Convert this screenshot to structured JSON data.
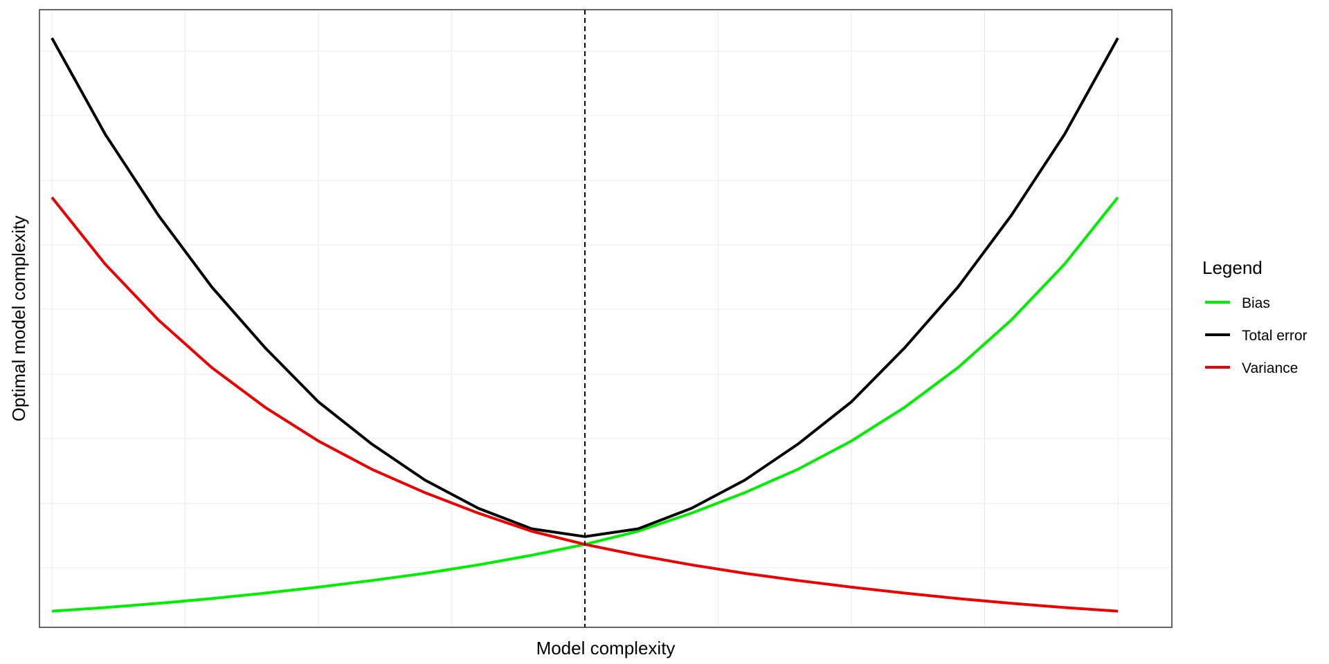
{
  "chart_data": {
    "type": "line",
    "title": "",
    "xlabel": "Model complexity",
    "ylabel": "Optimal model complexity",
    "xlim": [
      0,
      1
    ],
    "ylim": [
      0,
      1.07
    ],
    "grid": true,
    "x_tick_labels": [],
    "y_tick_labels": [],
    "optimal_line": {
      "x": 0.5,
      "style": "dashed",
      "color": "#000000"
    },
    "legend": {
      "title": "Legend",
      "position": "right"
    },
    "x": [
      0.0,
      0.05,
      0.1,
      0.15,
      0.2,
      0.25,
      0.3,
      0.35,
      0.4,
      0.45,
      0.5,
      0.55,
      0.6,
      0.65,
      0.7,
      0.75,
      0.8,
      0.85,
      0.9,
      0.95,
      1.0
    ],
    "series": [
      {
        "name": "Bias",
        "color": "#00ee00",
        "values": [
          0.047,
          0.053,
          0.06,
          0.068,
          0.077,
          0.087,
          0.098,
          0.11,
          0.124,
          0.14,
          0.158,
          0.18,
          0.21,
          0.244,
          0.283,
          0.33,
          0.386,
          0.452,
          0.531,
          0.624,
          0.735
        ]
      },
      {
        "name": "Total error",
        "color": "#000000",
        "values": [
          1.0,
          0.84,
          0.705,
          0.586,
          0.485,
          0.395,
          0.325,
          0.265,
          0.218,
          0.184,
          0.171,
          0.184,
          0.218,
          0.265,
          0.325,
          0.395,
          0.485,
          0.586,
          0.705,
          0.84,
          1.0
        ]
      },
      {
        "name": "Variance",
        "color": "#ee0000",
        "values": [
          0.735,
          0.624,
          0.531,
          0.452,
          0.386,
          0.33,
          0.283,
          0.244,
          0.21,
          0.18,
          0.158,
          0.14,
          0.124,
          0.11,
          0.098,
          0.087,
          0.077,
          0.068,
          0.06,
          0.053,
          0.047
        ]
      }
    ]
  }
}
